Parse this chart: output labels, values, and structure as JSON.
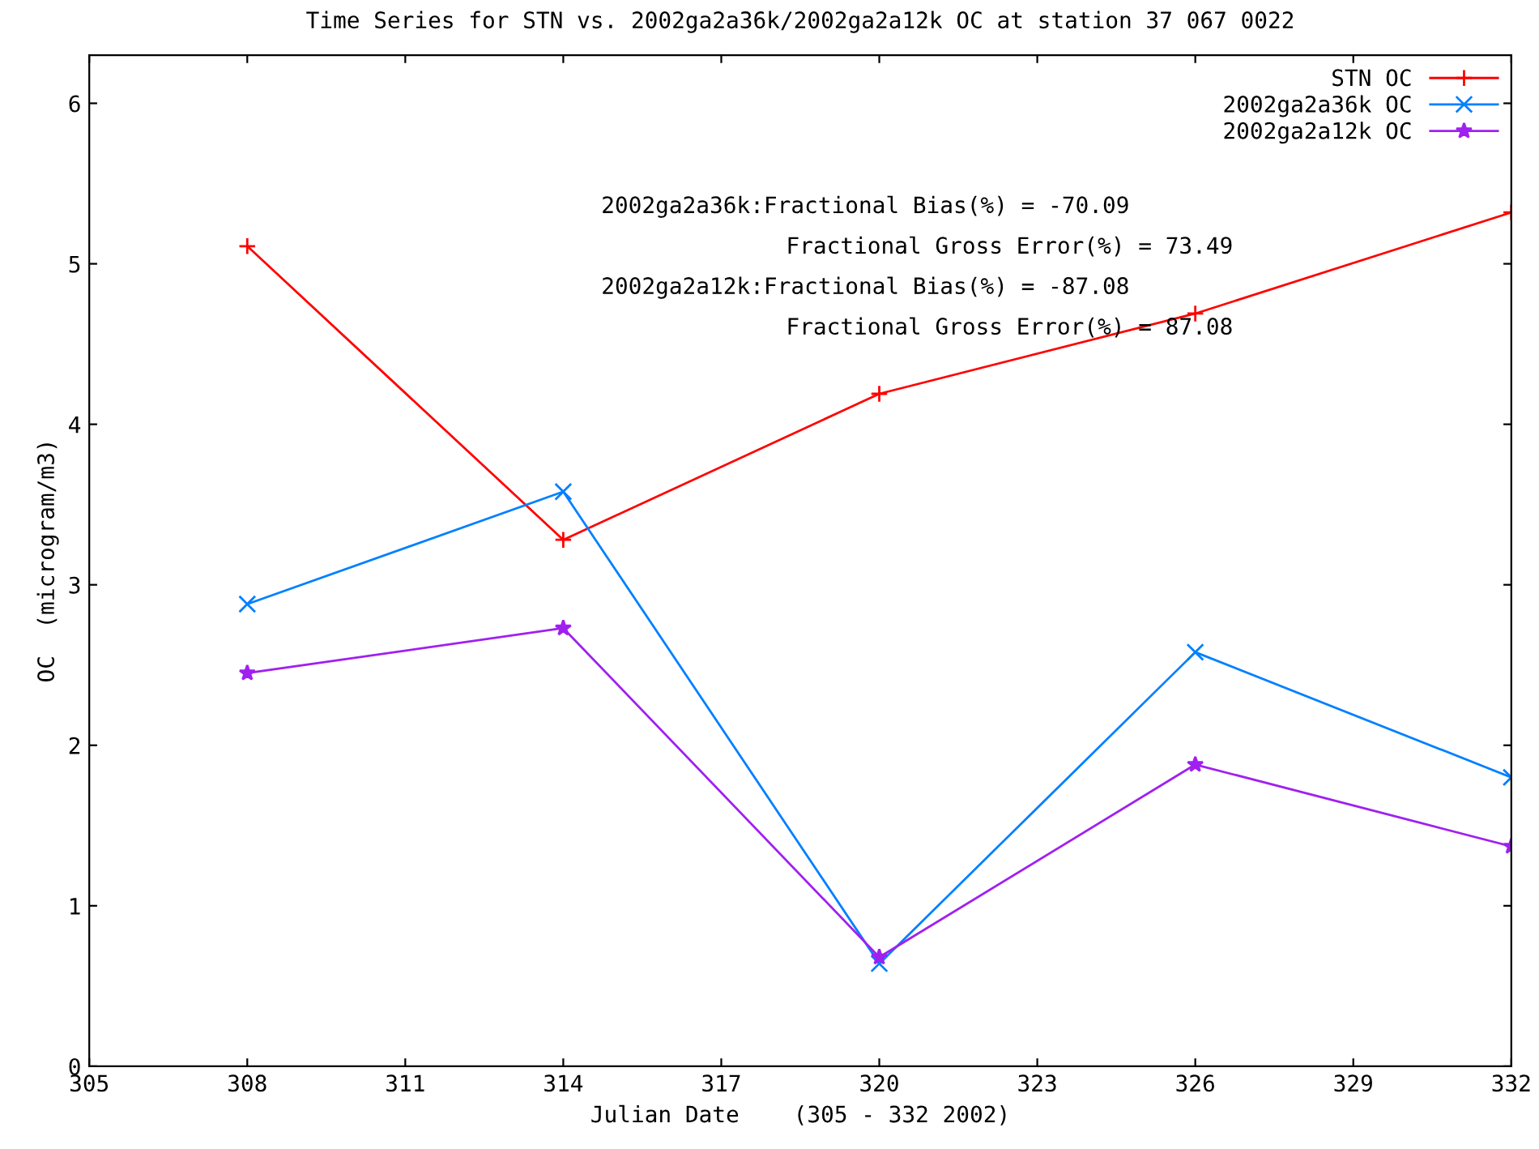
{
  "chart_data": {
    "type": "line",
    "title": "Time Series for STN vs. 2002ga2a36k/2002ga2a12k OC at station 37 067 0022",
    "xlabel": "Julian Date    (305 - 332 2002)",
    "ylabel": "OC  (microgram/m3)",
    "x": [
      308,
      314,
      320,
      326,
      332
    ],
    "series": [
      {
        "name": "STN OC",
        "color": "#ff0000",
        "marker": "plus",
        "values": [
          5.11,
          3.28,
          4.19,
          4.69,
          5.32
        ]
      },
      {
        "name": "2002ga2a36k OC",
        "color": "#0080ff",
        "marker": "cross",
        "values": [
          2.88,
          3.58,
          0.64,
          2.58,
          1.8
        ]
      },
      {
        "name": "2002ga2a12k OC",
        "color": "#a020f0",
        "marker": "star",
        "values": [
          2.45,
          2.73,
          0.68,
          1.88,
          1.37
        ]
      }
    ],
    "xlim": [
      305,
      332
    ],
    "xticks": [
      305,
      308,
      311,
      314,
      317,
      320,
      323,
      326,
      329,
      332
    ],
    "ylim": [
      0,
      6.3
    ],
    "yticks": [
      0,
      1,
      2,
      3,
      4,
      5,
      6
    ],
    "grid": false,
    "legend": "top right",
    "annotations": [
      "2002ga2a36k:Fractional Bias(%) = -70.09",
      "Fractional Gross Error(%) = 73.49",
      "2002ga2a12k:Fractional Bias(%) = -87.08",
      "Fractional Gross Error(%) = 87.08"
    ]
  }
}
